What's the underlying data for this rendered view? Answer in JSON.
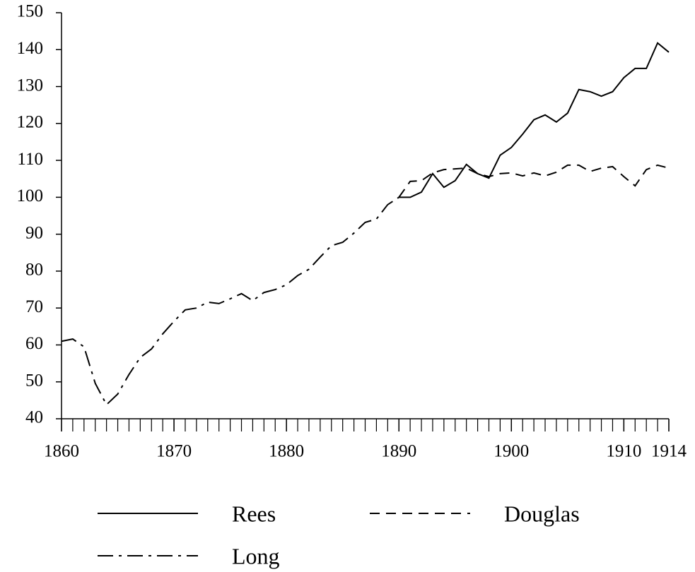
{
  "chart_data": {
    "type": "line",
    "x": [
      1860,
      1861,
      1862,
      1863,
      1864,
      1865,
      1866,
      1867,
      1868,
      1869,
      1870,
      1871,
      1872,
      1873,
      1874,
      1875,
      1876,
      1877,
      1878,
      1879,
      1880,
      1881,
      1882,
      1883,
      1884,
      1885,
      1886,
      1887,
      1888,
      1889,
      1890,
      1891,
      1892,
      1893,
      1894,
      1895,
      1896,
      1897,
      1898,
      1899,
      1900,
      1901,
      1902,
      1903,
      1904,
      1905,
      1906,
      1907,
      1908,
      1909,
      1910,
      1911,
      1912,
      1913,
      1914
    ],
    "series": [
      {
        "name": "Rees",
        "color": "#000000",
        "style": "solid",
        "values": [
          null,
          null,
          null,
          null,
          null,
          null,
          null,
          null,
          null,
          null,
          null,
          null,
          null,
          null,
          null,
          null,
          null,
          null,
          null,
          null,
          null,
          null,
          null,
          null,
          null,
          null,
          null,
          null,
          null,
          null,
          100,
          100,
          101.4,
          106.4,
          102.7,
          104.5,
          108.9,
          106.4,
          105.2,
          111.4,
          113.5,
          117.1,
          121,
          122.3,
          120.4,
          122.8,
          129.2,
          128.6,
          127.4,
          128.6,
          132.4,
          134.9,
          134.9,
          141.8,
          139.3
        ]
      },
      {
        "name": "Douglas",
        "color": "#000000",
        "style": "dashed",
        "values": [
          null,
          null,
          null,
          null,
          null,
          null,
          null,
          null,
          null,
          null,
          null,
          null,
          null,
          null,
          null,
          null,
          null,
          null,
          null,
          null,
          null,
          null,
          null,
          null,
          null,
          null,
          null,
          null,
          null,
          null,
          100,
          104.3,
          104.5,
          106.6,
          107.5,
          107.7,
          107.9,
          106.4,
          105.6,
          106.4,
          106.6,
          105.8,
          106.6,
          105.8,
          106.8,
          108.7,
          108.7,
          107,
          107.9,
          108.3,
          105.6,
          103.1,
          107.5,
          108.7,
          107.9
        ]
      },
      {
        "name": "Long",
        "color": "#000000",
        "style": "dashdot",
        "values": [
          61,
          61.6,
          59.5,
          49.6,
          43.8,
          46.7,
          52,
          56.6,
          58.9,
          63,
          66.4,
          69.5,
          70,
          71.6,
          71.2,
          72.5,
          73.9,
          72,
          74.2,
          75,
          76.3,
          78.8,
          80.5,
          83.8,
          86.9,
          87.8,
          90.3,
          93.2,
          94.1,
          98,
          100,
          null,
          null,
          null,
          null,
          null,
          null,
          null,
          null,
          null,
          null,
          null,
          null,
          null,
          null,
          null,
          null,
          null,
          null,
          null,
          null,
          null,
          null,
          null,
          null
        ]
      }
    ],
    "xlim": [
      1860,
      1914
    ],
    "xticks": [
      1860,
      1870,
      1880,
      1890,
      1900,
      1910,
      1914
    ],
    "ylim": [
      40,
      150
    ],
    "yticks": [
      40,
      50,
      60,
      70,
      80,
      90,
      100,
      110,
      120,
      130,
      140,
      150
    ],
    "grid": false
  }
}
